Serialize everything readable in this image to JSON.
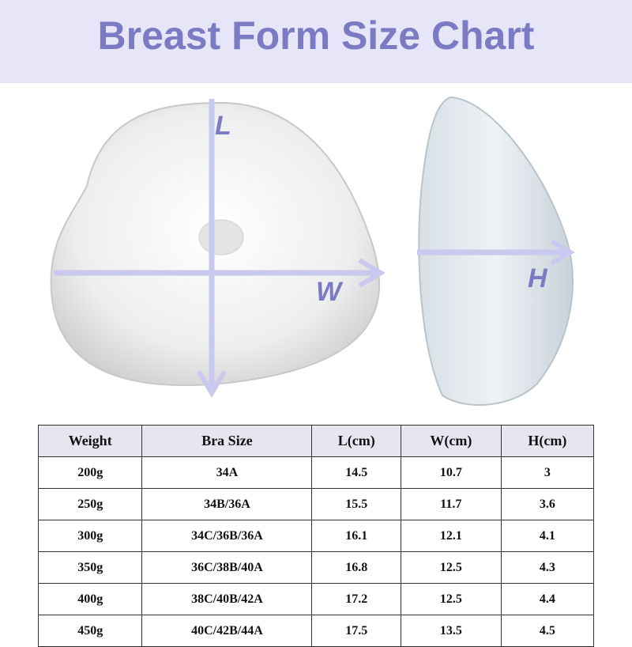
{
  "header": {
    "title": "Breast Form Size Chart"
  },
  "diagram": {
    "labels": {
      "length": "L",
      "width": "W",
      "height": "H"
    }
  },
  "table": {
    "headers": [
      "Weight",
      "Bra Size",
      "L(cm)",
      "W(cm)",
      "H(cm)"
    ],
    "rows": [
      [
        "200g",
        "34A",
        "14.5",
        "10.7",
        "3"
      ],
      [
        "250g",
        "34B/36A",
        "15.5",
        "11.7",
        "3.6"
      ],
      [
        "300g",
        "34C/36B/36A",
        "16.1",
        "12.1",
        "4.1"
      ],
      [
        "350g",
        "36C/38B/40A",
        "16.8",
        "12.5",
        "4.3"
      ],
      [
        "400g",
        "38C/40B/42A",
        "17.2",
        "12.5",
        "4.4"
      ],
      [
        "450g",
        "40C/42B/44A",
        "17.5",
        "13.5",
        "4.5"
      ]
    ]
  }
}
